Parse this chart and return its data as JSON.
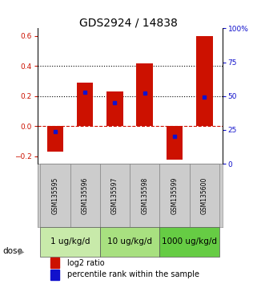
{
  "title": "GDS2924 / 14838",
  "samples": [
    "GSM135595",
    "GSM135596",
    "GSM135597",
    "GSM135598",
    "GSM135599",
    "GSM135600"
  ],
  "log2_ratio": [
    -0.17,
    0.29,
    0.23,
    0.42,
    -0.22,
    0.6
  ],
  "percentile_rank": [
    24,
    53,
    45,
    52,
    20,
    49
  ],
  "dose_groups": [
    {
      "label": "1 ug/kg/d",
      "samples": [
        0,
        1
      ],
      "color": "#c8eaaa"
    },
    {
      "label": "10 ug/kg/d",
      "samples": [
        2,
        3
      ],
      "color": "#a8e080"
    },
    {
      "label": "1000 ug/kg/d",
      "samples": [
        4,
        5
      ],
      "color": "#66cc44"
    }
  ],
  "bar_color": "#cc1100",
  "dot_color": "#1111cc",
  "ylim_left": [
    -0.25,
    0.65
  ],
  "ylim_right": [
    0,
    100
  ],
  "yticks_left": [
    -0.2,
    0.0,
    0.2,
    0.4,
    0.6
  ],
  "yticks_right": [
    0,
    25,
    50,
    75,
    100
  ],
  "ytick_labels_right": [
    "0",
    "25",
    "50",
    "75",
    "100%"
  ],
  "dashed_zero_color": "#cc1100",
  "dotted_line_color": "#000000",
  "bg_color": "#ffffff",
  "plot_bg_color": "#ffffff",
  "dose_arrow_label": "dose",
  "legend_red": "log2 ratio",
  "legend_blue": "percentile rank within the sample",
  "title_fontsize": 10,
  "tick_label_fontsize": 6.5,
  "sample_label_fontsize": 5.5,
  "dose_label_fontsize": 7.5,
  "legend_fontsize": 7,
  "bar_width": 0.55
}
